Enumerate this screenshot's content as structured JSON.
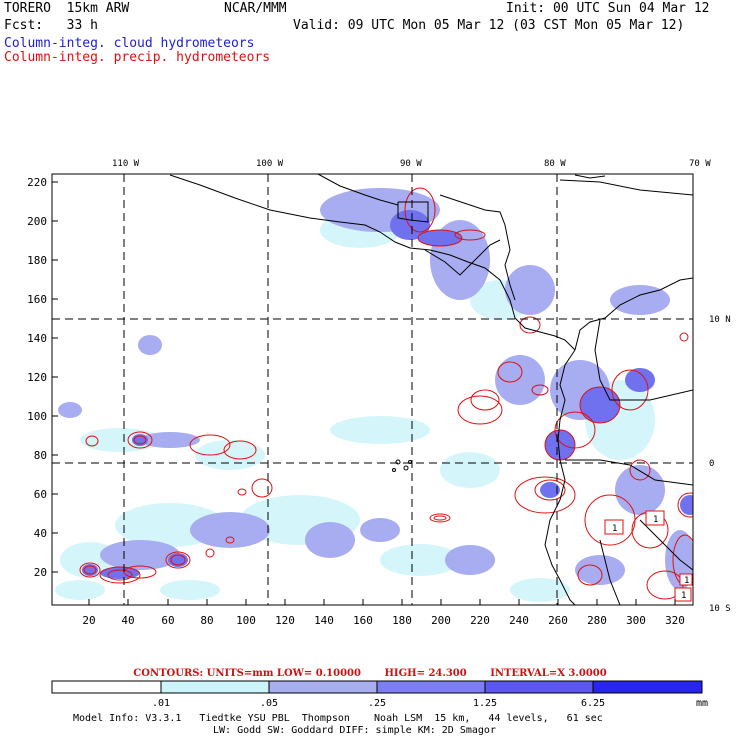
{
  "header": {
    "model": "TORERO  15km ARW",
    "org": "NCAR/MMM",
    "init": "Init: 00 UTC Sun 04 Mar 12",
    "fcst": "Fcst:   33 h",
    "valid": "Valid: 09 UTC Mon 05 Mar 12 (03 CST Mon 05 Mar 12)",
    "field1": "Column-integ. cloud hydrometeors",
    "field2": "Column-integ. precip. hydrometeors"
  },
  "map": {
    "lon_labels": [
      "110 W",
      "100 W",
      "90 W",
      "80 W",
      "70 W"
    ],
    "lat_labels": [
      "10 N",
      "0",
      "10 S"
    ],
    "y_ticks": [
      "220",
      "200",
      "180",
      "160",
      "140",
      "120",
      "100",
      "80",
      "60",
      "40",
      "20"
    ],
    "x_ticks": [
      "20",
      "40",
      "60",
      "80",
      "100",
      "120",
      "140",
      "160",
      "180",
      "200",
      "220",
      "240",
      "260",
      "280",
      "300",
      "320"
    ],
    "box_labels": [
      "1",
      "1",
      "1",
      "1"
    ]
  },
  "contour_info": {
    "units": "CONTOURS:  UNITS=mm  LOW= 0.10000",
    "high": "HIGH=  24.300",
    "interval": "INTERVAL=X  3.0000"
  },
  "colorbar": {
    "labels": [
      ".01",
      ".05",
      ".25",
      "1.25",
      "6.25",
      "mm"
    ],
    "colors": [
      "#ffffff",
      "#ccf5fb",
      "#a9aef0",
      "#7b7ff2",
      "#5a58ee",
      "#2626f0"
    ]
  },
  "footer": {
    "line1": "Model Info: V3.3.1   Tiedtke YSU PBL  Thompson    Noah LSM  15 km,   44 levels,   61 sec",
    "line2": "LW: Godd SW: Goddard DIFF: simple KM: 2D Smagor"
  }
}
